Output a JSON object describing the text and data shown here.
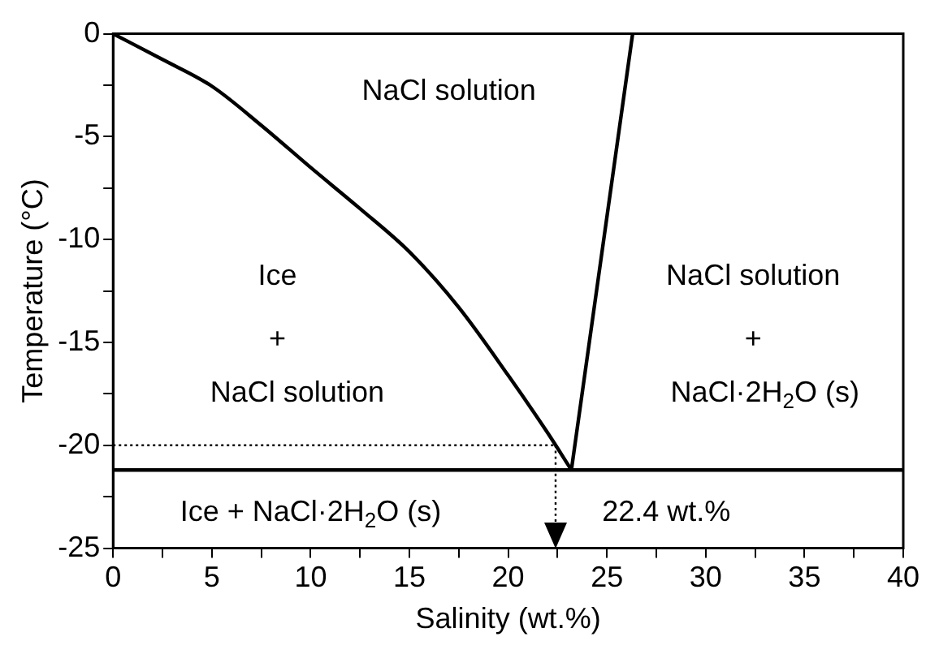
{
  "chart_data": {
    "type": "line",
    "xlabel": "Salinity (wt.%)",
    "ylabel": "Temperature (°C)",
    "xlim": [
      0,
      40
    ],
    "ylim": [
      -25,
      0
    ],
    "xticks": [
      0,
      {
        "value": 2.5,
        "label": null
      },
      5,
      {
        "value": 7.5,
        "label": null
      },
      10,
      {
        "value": 12.5,
        "label": null
      },
      15,
      {
        "value": 17.5,
        "label": null
      },
      20,
      {
        "value": 22.5,
        "label": null
      },
      25,
      {
        "value": 27.5,
        "label": null
      },
      30,
      {
        "value": 32.5,
        "label": null
      },
      35,
      {
        "value": 37.5,
        "label": null
      },
      40
    ],
    "yticks": [
      -25,
      {
        "value": -22.5,
        "label": null
      },
      -20,
      {
        "value": -17.5,
        "label": null
      },
      -15,
      {
        "value": -12.5,
        "label": null
      },
      -10,
      {
        "value": -7.5,
        "label": null
      },
      -5,
      {
        "value": -2.5,
        "label": null
      },
      0
    ],
    "grid": false,
    "legend": false,
    "marker": "none",
    "series": [
      {
        "color": "#000000",
        "line_style": "solid",
        "x": [
          0,
          2.5,
          5,
          7.5,
          10,
          12.5,
          15,
          17.5,
          20,
          22,
          23.2
        ],
        "values": [
          0,
          -1.25,
          -2.55,
          -4.45,
          -6.5,
          -8.5,
          -10.6,
          -13.3,
          -16.6,
          -19.4,
          -21.2
        ]
      },
      {
        "color": "#000000",
        "line_style": "solid",
        "x": [
          23.2,
          26.3
        ],
        "values": [
          -21.2,
          0
        ]
      },
      {
        "color": "#000000",
        "line_style": "solid",
        "x": [
          0,
          40
        ],
        "values": [
          -21.2,
          -21.2
        ]
      },
      {
        "color": "#000000",
        "line_style": "dotted",
        "x": [
          0,
          22.4
        ],
        "values": [
          -20,
          -20
        ]
      },
      {
        "color": "#000000",
        "line_style": "dotted",
        "x": [
          22.4,
          22.4
        ],
        "values": [
          -20,
          -25
        ]
      }
    ],
    "annotations": [
      "NaCl solution",
      "Ice",
      "+",
      "NaCl solution",
      "NaCl solution",
      "+",
      "NaCl·2H$_{2}$O (s)",
      "Ice + NaCl·2H$_{2}$O (s)",
      "22.4 wt.%"
    ]
  }
}
